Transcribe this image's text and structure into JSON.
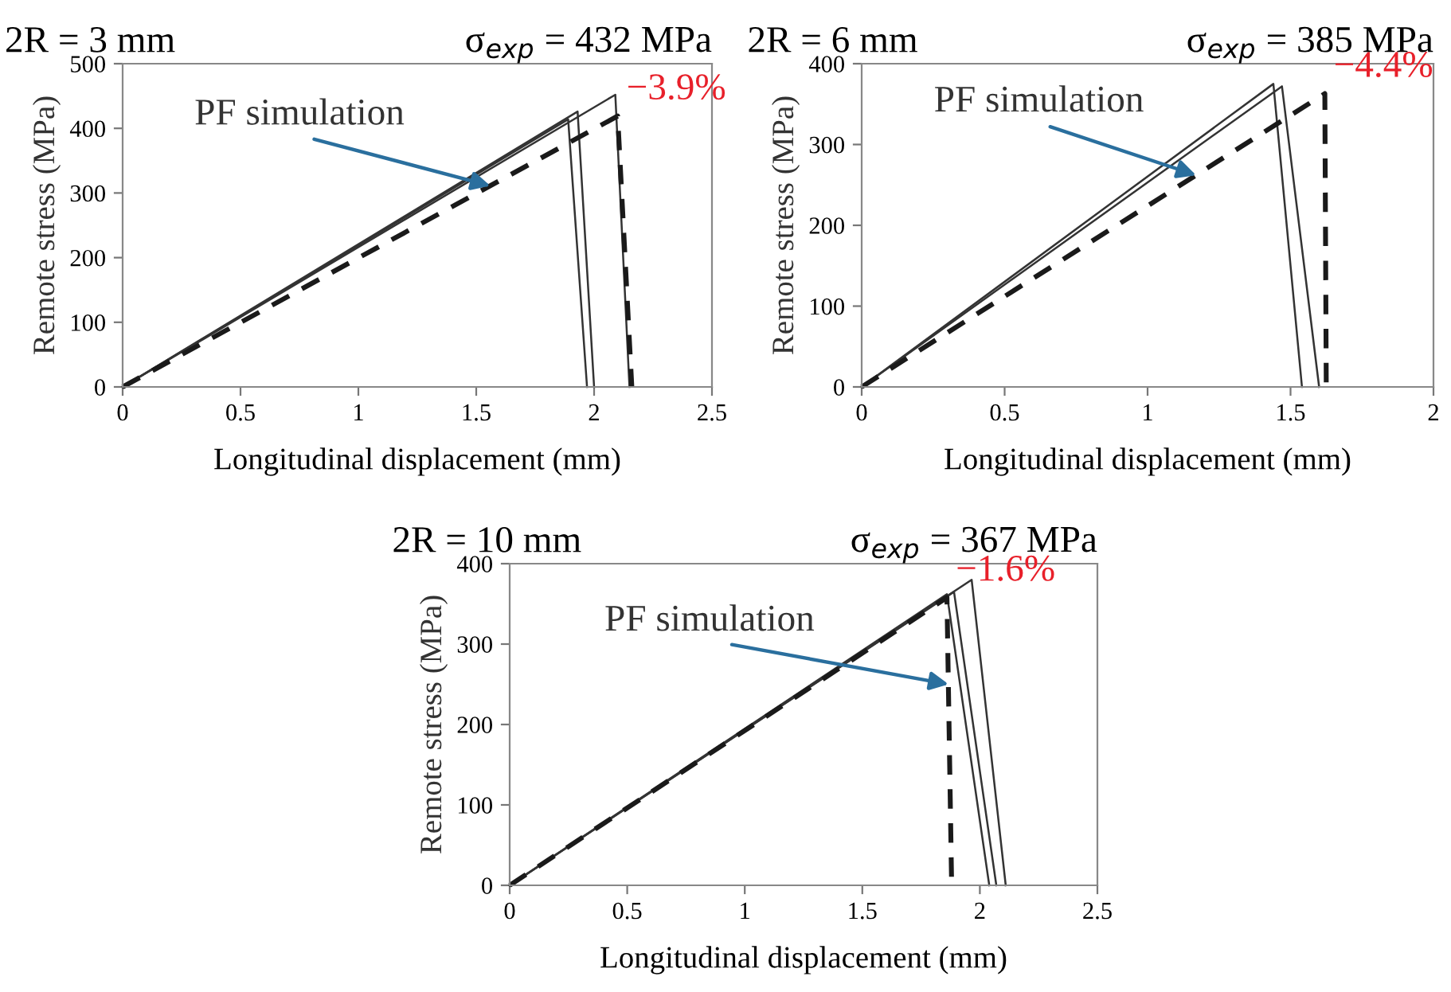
{
  "chart_data": [
    {
      "type": "line",
      "title": "2R = 3 mm",
      "subtitle": "σ$_{exp}$ = 432 MPa",
      "xlabel": "Longitudinal displacement (mm)",
      "ylabel": "Remote stress (MPa)",
      "series": [
        {
          "color": "#333333",
          "line_style": "solid",
          "x": [
            0,
            1.89,
            1.97
          ],
          "values": [
            0,
            414,
            0
          ]
        },
        {
          "color": "#333333",
          "line_style": "solid",
          "x": [
            0,
            1.93,
            2.0
          ],
          "values": [
            0,
            426,
            0
          ]
        },
        {
          "color": "#333333",
          "line_style": "solid",
          "x": [
            0,
            2.09,
            2.15
          ],
          "values": [
            0,
            452,
            0
          ]
        },
        {
          "color": "#1a1a1a",
          "line_style": "dashed",
          "x": [
            0,
            2.1,
            2.16
          ],
          "values": [
            0,
            419,
            0
          ]
        }
      ],
      "annotations": [
        {
          "text": "PF simulation",
          "x": 1.56,
          "y": 311
        },
        {
          "text": "−3.9%",
          "x": 2.1,
          "y": 419
        }
      ],
      "xlim": [
        0,
        2.5
      ],
      "ylim": [
        0,
        500
      ],
      "xticks": [
        0,
        0.5,
        1,
        1.5,
        2,
        2.5
      ],
      "yticks": [
        0,
        100,
        200,
        300,
        400,
        500
      ],
      "grid": false,
      "legend": false
    },
    {
      "type": "line",
      "title": "2R = 6 mm",
      "subtitle": "σ$_{exp}$ = 385 MPa",
      "xlabel": "Longitudinal displacement (mm)",
      "ylabel": "Remote stress (MPa)",
      "series": [
        {
          "color": "#333333",
          "line_style": "solid",
          "x": [
            0,
            1.44,
            1.54
          ],
          "values": [
            0,
            375,
            0
          ]
        },
        {
          "color": "#333333",
          "line_style": "solid",
          "x": [
            0,
            1.47,
            1.6
          ],
          "values": [
            0,
            372,
            0
          ]
        },
        {
          "color": "#1a1a1a",
          "line_style": "dashed",
          "x": [
            0,
            1.62,
            1.625
          ],
          "values": [
            0,
            363,
            0
          ]
        }
      ],
      "annotations": [
        {
          "text": "PF simulation",
          "x": 1.17,
          "y": 262
        },
        {
          "text": "−4.4%",
          "x": 1.62,
          "y": 363
        }
      ],
      "xlim": [
        0,
        2
      ],
      "ylim": [
        0,
        400
      ],
      "xticks": [
        0,
        0.5,
        1,
        1.5,
        2
      ],
      "yticks": [
        0,
        100,
        200,
        300,
        400
      ],
      "grid": false,
      "legend": false
    },
    {
      "type": "line",
      "title": "2R = 10 mm",
      "subtitle": "σ$_{exp}$ = 367 MPa",
      "xlabel": "Longitudinal displacement (mm)",
      "ylabel": "Remote stress (MPa)",
      "series": [
        {
          "color": "#333333",
          "line_style": "solid",
          "x": [
            0,
            1.86,
            2.04
          ],
          "values": [
            0,
            362,
            0
          ]
        },
        {
          "color": "#333333",
          "line_style": "solid",
          "x": [
            0,
            1.89,
            2.07
          ],
          "values": [
            0,
            365,
            0
          ]
        },
        {
          "color": "#333333",
          "line_style": "solid",
          "x": [
            0,
            1.965,
            2.11
          ],
          "values": [
            0,
            380,
            0
          ]
        },
        {
          "color": "#1a1a1a",
          "line_style": "dashed",
          "x": [
            0,
            1.86,
            1.88
          ],
          "values": [
            0,
            358,
            0
          ]
        }
      ],
      "annotations": [
        {
          "text": "PF simulation",
          "x": 1.867,
          "y": 250
        },
        {
          "text": "−1.6%",
          "x": 1.86,
          "y": 358
        }
      ],
      "xlim": [
        0,
        2.5
      ],
      "ylim": [
        0,
        400
      ],
      "xticks": [
        0,
        0.5,
        1,
        1.5,
        2,
        2.5
      ],
      "yticks": [
        0,
        100,
        200,
        300,
        400
      ],
      "grid": false,
      "legend": false
    }
  ]
}
